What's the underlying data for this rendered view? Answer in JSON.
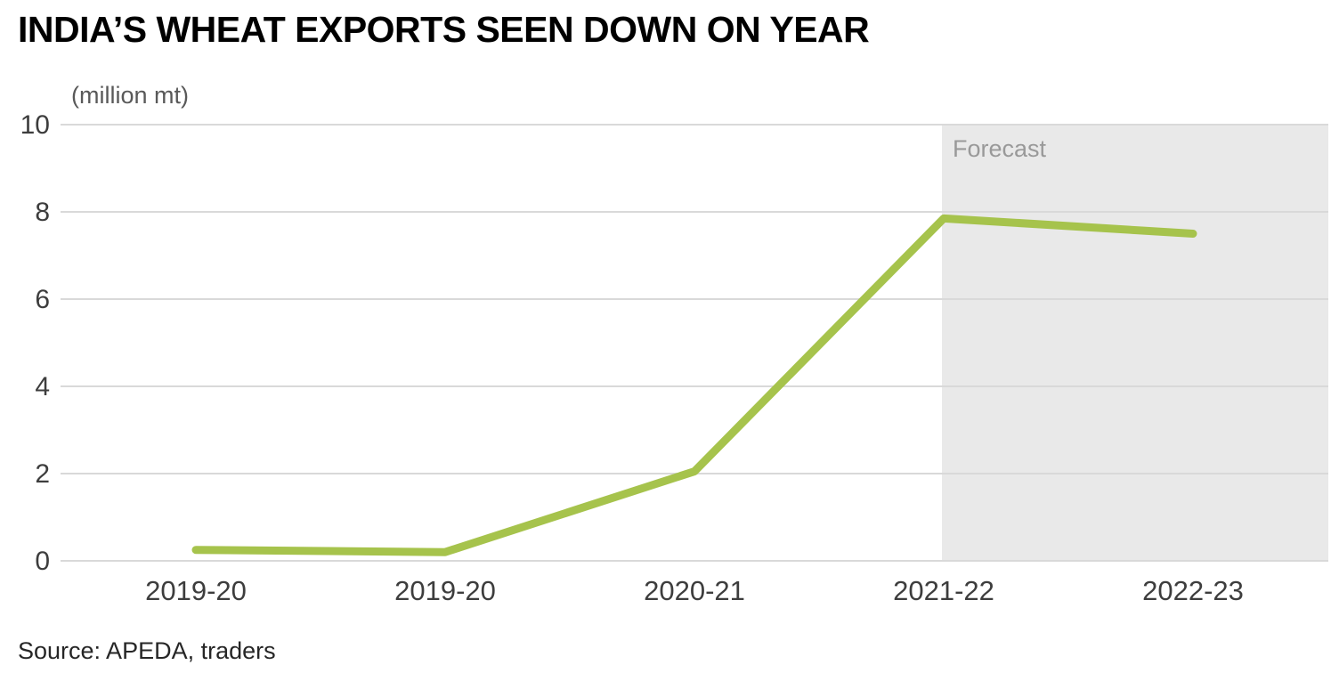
{
  "title": "INDIA’S WHEAT EXPORTS SEEN DOWN ON YEAR",
  "unit_label": "(million mt)",
  "source": "Source: APEDA, traders",
  "forecast_label": "Forecast",
  "colors": {
    "line": "#a6c34c",
    "forecast_bg": "#e9e9e9",
    "grid": "#d9d9d9",
    "axis_text": "#3d3d3d",
    "muted_text": "#999999"
  },
  "chart_data": {
    "type": "line",
    "title": "INDIA’S WHEAT EXPORTS SEEN DOWN ON YEAR",
    "ylabel": "(million mt)",
    "categories": [
      "2019-20",
      "2019-20",
      "2020-21",
      "2021-22",
      "2022-23"
    ],
    "values": [
      0.25,
      0.2,
      2.05,
      7.85,
      7.5
    ],
    "ylim": [
      0,
      10
    ],
    "yticks": [
      0,
      2,
      4,
      6,
      8,
      10
    ],
    "forecast_start_index": 3,
    "forecast_label": "Forecast",
    "grid": "horizontal",
    "legend_position": "none",
    "source": "Source: APEDA, traders"
  }
}
